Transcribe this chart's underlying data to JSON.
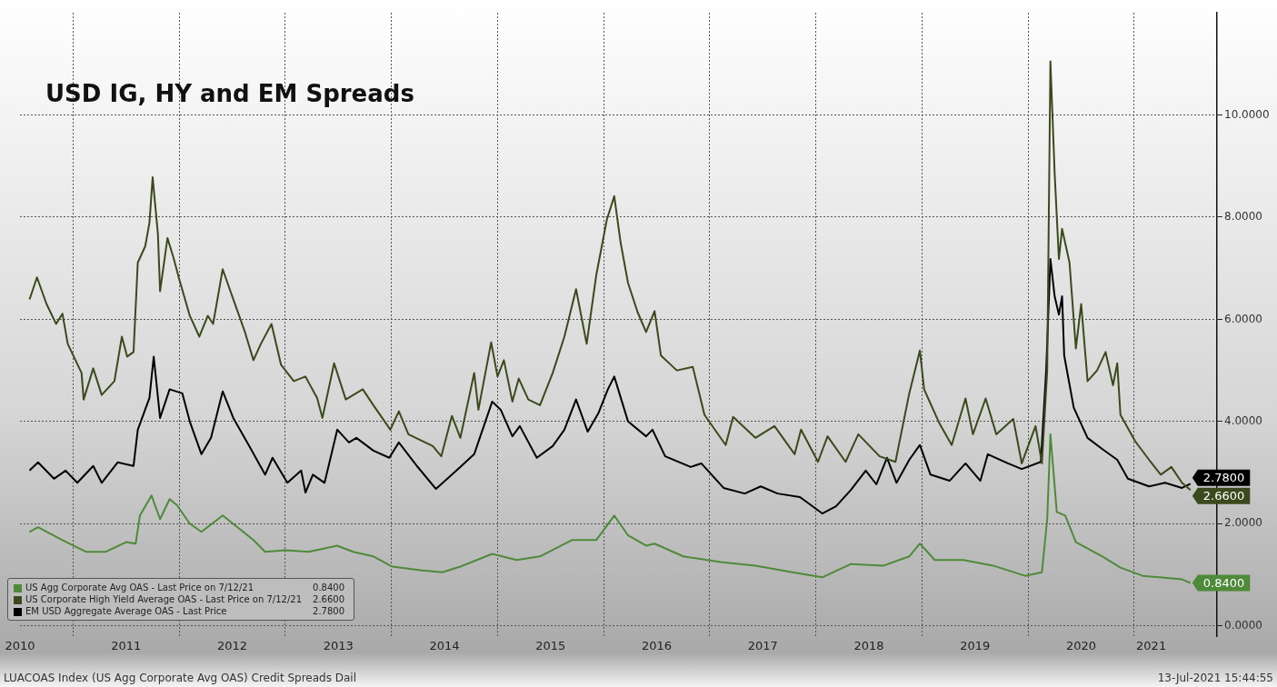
{
  "chart_data": {
    "type": "line",
    "title": "USD IG, HY and EM Spreads",
    "annotations": [
      "LUACOAS Index (US Agg Corporate Avg OAS) Credit Spreads  Dail",
      "13-Jul-2021 15:44:55"
    ],
    "xlim": [
      2010.5,
      2021.78
    ],
    "xticks": [
      {
        "value": 2010.5,
        "label": "2010"
      },
      {
        "value": 2011,
        "label": null
      },
      {
        "value": 2011.5,
        "label": "2011"
      },
      {
        "value": 2012,
        "label": null
      },
      {
        "value": 2012.5,
        "label": "2012"
      },
      {
        "value": 2013,
        "label": null
      },
      {
        "value": 2013.5,
        "label": "2013"
      },
      {
        "value": 2014,
        "label": null
      },
      {
        "value": 2014.5,
        "label": "2014"
      },
      {
        "value": 2015,
        "label": null
      },
      {
        "value": 2015.5,
        "label": "2015"
      },
      {
        "value": 2016,
        "label": null
      },
      {
        "value": 2016.5,
        "label": "2016"
      },
      {
        "value": 2017,
        "label": null
      },
      {
        "value": 2017.5,
        "label": "2017"
      },
      {
        "value": 2018,
        "label": null
      },
      {
        "value": 2018.5,
        "label": "2018"
      },
      {
        "value": 2019,
        "label": null
      },
      {
        "value": 2019.5,
        "label": "2019"
      },
      {
        "value": 2020,
        "label": null
      },
      {
        "value": 2020.5,
        "label": "2020"
      },
      {
        "value": 2021,
        "label": null
      },
      {
        "value": 2021.16,
        "label": "2021"
      }
    ],
    "ylim": [
      -0.2,
      12
    ],
    "yticks": [
      {
        "value": 0,
        "label": "0.0000"
      },
      {
        "value": 2,
        "label": "2.0000"
      },
      {
        "value": 4,
        "label": "4.0000"
      },
      {
        "value": 6,
        "label": "6.0000"
      },
      {
        "value": 8,
        "label": "8.0000"
      },
      {
        "value": 10,
        "label": "10.0000"
      }
    ],
    "grid": true,
    "legend": "bottom left",
    "series": [
      {
        "name": "US Agg Corporate Avg OAS - Last Price on 7/12/21",
        "color": "#4e8a3a",
        "x": [
          2010.59,
          2010.67,
          2010.9,
          2011.12,
          2011.31,
          2011.5,
          2011.59,
          2011.63,
          2011.74,
          2011.82,
          2011.91,
          2011.98,
          2012.1,
          2012.21,
          2012.41,
          2012.55,
          2012.7,
          2012.81,
          2013.0,
          2013.22,
          2013.49,
          2013.64,
          2013.83,
          2014.01,
          2014.27,
          2014.48,
          2014.65,
          2014.95,
          2015.18,
          2015.4,
          2015.7,
          2015.93,
          2016.1,
          2016.23,
          2016.4,
          2016.48,
          2016.75,
          2017.1,
          2017.43,
          2017.78,
          2018.06,
          2018.33,
          2018.64,
          2018.88,
          2018.98,
          2019.12,
          2019.39,
          2019.67,
          2019.97,
          2020.13,
          2020.18,
          2020.21,
          2020.27,
          2020.35,
          2020.45,
          2020.7,
          2020.87,
          2021.08,
          2021.45,
          2021.53
        ],
        "values": [
          1.84,
          1.93,
          1.68,
          1.45,
          1.45,
          1.64,
          1.61,
          2.16,
          2.55,
          2.09,
          2.48,
          2.36,
          2.0,
          1.84,
          2.16,
          1.93,
          1.68,
          1.45,
          1.48,
          1.45,
          1.57,
          1.45,
          1.36,
          1.16,
          1.09,
          1.05,
          1.16,
          1.41,
          1.29,
          1.36,
          1.68,
          1.68,
          2.16,
          1.77,
          1.57,
          1.61,
          1.36,
          1.25,
          1.18,
          1.05,
          0.95,
          1.21,
          1.18,
          1.36,
          1.61,
          1.29,
          1.29,
          1.18,
          0.98,
          1.05,
          2.09,
          3.75,
          2.23,
          2.16,
          1.64,
          1.36,
          1.14,
          0.98,
          0.91,
          0.84
        ],
        "value_labels": [
          null,
          null,
          null,
          null,
          null,
          null,
          null,
          null,
          null,
          null,
          null,
          null,
          null,
          null,
          null,
          null,
          null,
          null,
          null,
          null,
          null,
          null,
          null,
          null,
          null,
          null,
          null,
          null,
          null,
          null,
          null,
          null,
          null,
          null,
          null,
          null,
          null,
          null,
          null,
          null,
          null,
          null,
          null,
          null,
          null,
          null,
          null,
          null,
          null,
          null,
          null,
          null,
          null,
          null,
          null,
          null,
          null,
          null,
          null,
          "0.8400"
        ]
      },
      {
        "name": "US Corporate High Yield Average OAS - Last Price on 7/12/21",
        "color": "#3b4a1c",
        "x": [
          2010.59,
          2010.66,
          2010.75,
          2010.84,
          2010.9,
          2010.95,
          2011.08,
          2011.1,
          2011.19,
          2011.27,
          2011.39,
          2011.46,
          2011.51,
          2011.57,
          2011.61,
          2011.68,
          2011.72,
          2011.75,
          2011.8,
          2011.82,
          2011.89,
          2011.95,
          2012.0,
          2012.1,
          2012.19,
          2012.27,
          2012.32,
          2012.41,
          2012.51,
          2012.62,
          2012.7,
          2012.77,
          2012.87,
          2012.96,
          2013.08,
          2013.19,
          2013.3,
          2013.35,
          2013.46,
          2013.57,
          2013.73,
          2013.83,
          2013.99,
          2014.07,
          2014.16,
          2014.27,
          2014.39,
          2014.47,
          2014.57,
          2014.65,
          2014.78,
          2014.82,
          2014.94,
          2015.0,
          2015.06,
          2015.14,
          2015.2,
          2015.29,
          2015.4,
          2015.52,
          2015.63,
          2015.74,
          2015.84,
          2015.93,
          2016.03,
          2016.1,
          2016.16,
          2016.23,
          2016.32,
          2016.4,
          2016.48,
          2016.54,
          2016.69,
          2016.84,
          2016.95,
          2017.15,
          2017.22,
          2017.43,
          2017.61,
          2017.8,
          2017.86,
          2018.02,
          2018.11,
          2018.28,
          2018.4,
          2018.6,
          2018.75,
          2018.88,
          2018.98,
          2019.02,
          2019.16,
          2019.28,
          2019.41,
          2019.48,
          2019.6,
          2019.7,
          2019.86,
          2019.94,
          2020.07,
          2020.13,
          2020.18,
          2020.21,
          2020.25,
          2020.29,
          2020.32,
          2020.39,
          2020.45,
          2020.5,
          2020.56,
          2020.65,
          2020.73,
          2020.8,
          2020.84,
          2020.87,
          2021.01,
          2021.14,
          2021.25,
          2021.35,
          2021.45,
          2021.53
        ],
        "values": [
          6.39,
          6.82,
          6.3,
          5.91,
          6.11,
          5.52,
          4.95,
          4.43,
          5.04,
          4.52,
          4.79,
          5.66,
          5.27,
          5.36,
          7.11,
          7.43,
          7.89,
          8.78,
          7.66,
          6.55,
          7.59,
          7.18,
          6.79,
          6.07,
          5.66,
          6.07,
          5.91,
          6.98,
          6.39,
          5.75,
          5.2,
          5.52,
          5.91,
          5.11,
          4.79,
          4.88,
          4.46,
          4.07,
          5.14,
          4.43,
          4.63,
          4.32,
          3.84,
          4.2,
          3.75,
          3.64,
          3.52,
          3.32,
          4.11,
          3.68,
          4.95,
          4.23,
          5.55,
          4.88,
          5.2,
          4.39,
          4.84,
          4.43,
          4.32,
          4.95,
          5.66,
          6.59,
          5.52,
          6.86,
          7.95,
          8.41,
          7.5,
          6.71,
          6.14,
          5.75,
          6.16,
          5.29,
          5.0,
          5.07,
          4.13,
          3.54,
          4.09,
          3.68,
          3.91,
          3.36,
          3.84,
          3.21,
          3.71,
          3.21,
          3.75,
          3.32,
          3.21,
          4.55,
          5.39,
          4.63,
          3.98,
          3.54,
          4.45,
          3.75,
          4.45,
          3.75,
          4.05,
          3.18,
          3.91,
          3.18,
          5.0,
          11.05,
          8.86,
          7.18,
          7.77,
          7.11,
          5.43,
          6.3,
          4.79,
          5.0,
          5.36,
          4.71,
          5.14,
          4.13,
          3.61,
          3.25,
          2.96,
          3.11,
          2.8,
          2.66
        ],
        "value_labels": [
          null,
          null,
          null,
          null,
          null,
          null,
          null,
          null,
          null,
          null,
          null,
          null,
          null,
          null,
          null,
          null,
          null,
          null,
          null,
          null,
          null,
          null,
          null,
          null,
          null,
          null,
          null,
          null,
          null,
          null,
          null,
          null,
          null,
          null,
          null,
          null,
          null,
          null,
          null,
          null,
          null,
          null,
          null,
          null,
          null,
          null,
          null,
          null,
          null,
          null,
          null,
          null,
          null,
          null,
          null,
          null,
          null,
          null,
          null,
          null,
          null,
          null,
          null,
          null,
          null,
          null,
          null,
          null,
          null,
          null,
          null,
          null,
          null,
          null,
          null,
          null,
          null,
          null,
          null,
          null,
          null,
          null,
          null,
          null,
          null,
          null,
          null,
          null,
          null,
          null,
          null,
          null,
          null,
          null,
          null,
          null,
          null,
          null,
          null,
          null,
          null,
          null,
          null,
          null,
          null,
          null,
          null,
          null,
          null,
          null,
          null,
          null,
          null,
          null,
          null,
          null,
          null,
          null,
          null,
          "2.6600"
        ]
      },
      {
        "name": "EM USD Aggregate Average OAS - Last Price",
        "color": "#000000",
        "x": [
          2010.59,
          2010.67,
          2010.82,
          2010.93,
          2011.04,
          2011.19,
          2011.27,
          2011.42,
          2011.57,
          2011.61,
          2011.72,
          2011.76,
          2011.82,
          2011.91,
          2012.03,
          2012.1,
          2012.21,
          2012.3,
          2012.41,
          2012.51,
          2012.66,
          2012.81,
          2012.88,
          2013.02,
          2013.15,
          2013.19,
          2013.26,
          2013.37,
          2013.49,
          2013.6,
          2013.67,
          2013.83,
          2013.98,
          2014.07,
          2014.24,
          2014.42,
          2014.57,
          2014.78,
          2014.95,
          2015.03,
          2015.14,
          2015.21,
          2015.37,
          2015.52,
          2015.63,
          2015.74,
          2015.85,
          2015.95,
          2016.04,
          2016.1,
          2016.23,
          2016.4,
          2016.46,
          2016.58,
          2016.82,
          2016.92,
          2017.13,
          2017.33,
          2017.48,
          2017.64,
          2017.85,
          2018.06,
          2018.19,
          2018.33,
          2018.47,
          2018.57,
          2018.67,
          2018.76,
          2018.88,
          2018.98,
          2019.08,
          2019.26,
          2019.41,
          2019.55,
          2019.62,
          2019.81,
          2019.94,
          2020.12,
          2020.17,
          2020.21,
          2020.25,
          2020.29,
          2020.32,
          2020.34,
          2020.43,
          2020.56,
          2020.7,
          2020.84,
          2020.94,
          2021.14,
          2021.29,
          2021.45,
          2021.53
        ],
        "values": [
          3.04,
          3.2,
          2.88,
          3.04,
          2.8,
          3.13,
          2.8,
          3.2,
          3.13,
          3.84,
          4.46,
          5.27,
          4.07,
          4.63,
          4.55,
          4.0,
          3.36,
          3.68,
          4.59,
          4.07,
          3.52,
          2.96,
          3.29,
          2.8,
          3.04,
          2.61,
          2.96,
          2.8,
          3.84,
          3.59,
          3.68,
          3.43,
          3.29,
          3.59,
          3.13,
          2.68,
          2.96,
          3.36,
          4.39,
          4.23,
          3.71,
          3.91,
          3.29,
          3.52,
          3.84,
          4.43,
          3.8,
          4.16,
          4.63,
          4.88,
          4.0,
          3.71,
          3.84,
          3.32,
          3.11,
          3.18,
          2.7,
          2.59,
          2.73,
          2.59,
          2.52,
          2.2,
          2.34,
          2.66,
          3.04,
          2.77,
          3.29,
          2.8,
          3.25,
          3.54,
          2.96,
          2.84,
          3.18,
          2.84,
          3.36,
          3.18,
          3.07,
          3.21,
          5.0,
          7.18,
          6.45,
          6.09,
          6.45,
          5.29,
          4.27,
          3.68,
          3.46,
          3.25,
          2.88,
          2.73,
          2.8,
          2.7,
          2.78
        ],
        "value_labels": [
          null,
          null,
          null,
          null,
          null,
          null,
          null,
          null,
          null,
          null,
          null,
          null,
          null,
          null,
          null,
          null,
          null,
          null,
          null,
          null,
          null,
          null,
          null,
          null,
          null,
          null,
          null,
          null,
          null,
          null,
          null,
          null,
          null,
          null,
          null,
          null,
          null,
          null,
          null,
          null,
          null,
          null,
          null,
          null,
          null,
          null,
          null,
          null,
          null,
          null,
          null,
          null,
          null,
          null,
          null,
          null,
          null,
          null,
          null,
          null,
          null,
          null,
          null,
          null,
          null,
          null,
          null,
          null,
          null,
          null,
          null,
          null,
          null,
          null,
          null,
          null,
          null,
          null,
          null,
          null,
          null,
          null,
          null,
          null,
          null,
          null,
          null,
          null,
          null,
          null,
          null,
          null,
          "2.7800"
        ]
      }
    ]
  }
}
